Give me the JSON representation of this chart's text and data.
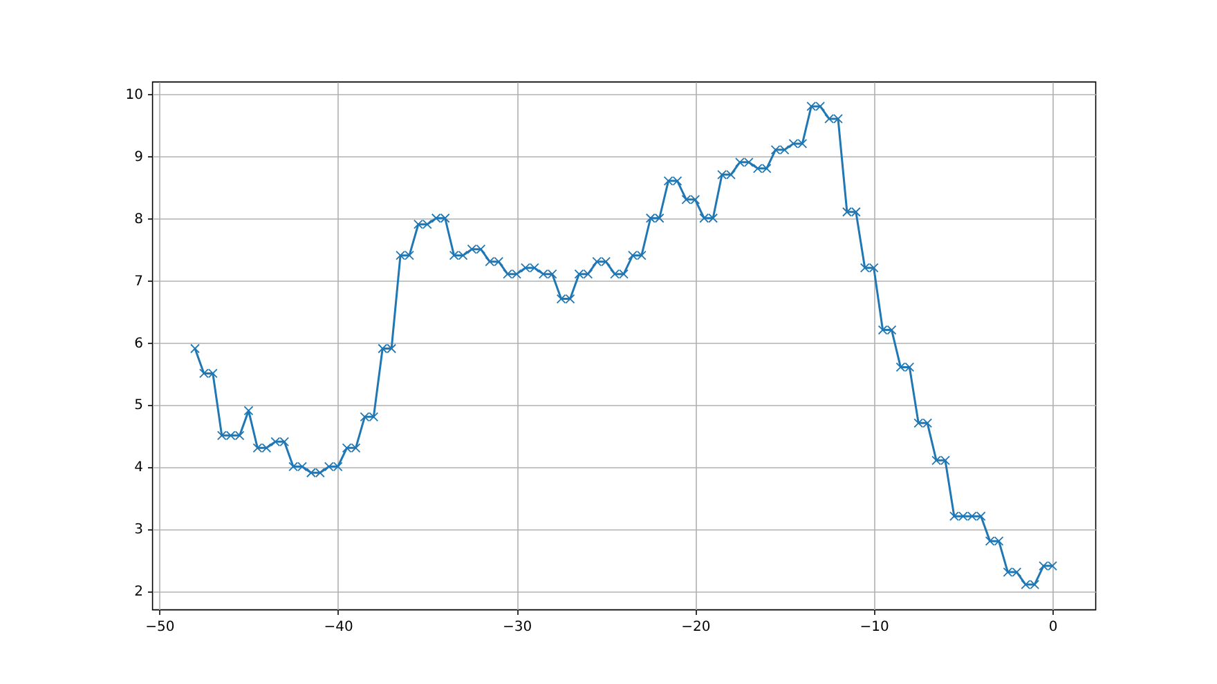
{
  "chart_data": {
    "type": "line",
    "marker": "cross",
    "line_style": "solid",
    "grid": true,
    "color": "#1f77b4",
    "x": [
      -48,
      -47.5,
      -47,
      -46.5,
      -46,
      -45.5,
      -45,
      -44.5,
      -44,
      -43.5,
      -43,
      -42.5,
      -42,
      -41.5,
      -41,
      -40.5,
      -40,
      -39.5,
      -39,
      -38.5,
      -38,
      -37.5,
      -37,
      -36.5,
      -36,
      -35.5,
      -35,
      -34.5,
      -34,
      -33.5,
      -33,
      -32.5,
      -32,
      -31.5,
      -31,
      -30.5,
      -30,
      -29.5,
      -29,
      -28.5,
      -28,
      -27.5,
      -27,
      -26.5,
      -26,
      -25.5,
      -25,
      -24.5,
      -24,
      -23.5,
      -23,
      -22.5,
      -22,
      -21.5,
      -21,
      -20.5,
      -20,
      -19.5,
      -19,
      -18.5,
      -18,
      -17.5,
      -17,
      -16.5,
      -16,
      -15.5,
      -15,
      -14.5,
      -14,
      -13.5,
      -13,
      -12.5,
      -12,
      -11.5,
      -11,
      -10.5,
      -10,
      -9.5,
      -9,
      -8.5,
      -8,
      -7.5,
      -7,
      -6.5,
      -6,
      -5.5,
      -5,
      -4.5,
      -4,
      -3.5,
      -3,
      -2.5,
      -2,
      -1.5,
      -1,
      -0.5,
      0
    ],
    "values": [
      5.9,
      5.5,
      5.5,
      4.5,
      4.5,
      4.5,
      4.9,
      4.3,
      4.3,
      4.4,
      4.4,
      4.0,
      4.0,
      3.9,
      3.9,
      4.0,
      4.0,
      4.3,
      4.3,
      4.8,
      4.8,
      5.9,
      5.9,
      7.4,
      7.4,
      7.9,
      7.9,
      8.0,
      8.0,
      7.4,
      7.4,
      7.5,
      7.5,
      7.3,
      7.3,
      7.1,
      7.1,
      7.2,
      7.2,
      7.1,
      7.1,
      6.7,
      6.7,
      7.1,
      7.1,
      7.3,
      7.3,
      7.1,
      7.1,
      7.4,
      7.4,
      8.0,
      8.0,
      8.6,
      8.6,
      8.3,
      8.3,
      8.0,
      8.0,
      8.7,
      8.7,
      8.9,
      8.9,
      8.8,
      8.8,
      9.1,
      9.1,
      9.2,
      9.2,
      9.8,
      9.8,
      9.6,
      9.6,
      8.1,
      8.1,
      7.2,
      7.2,
      6.2,
      6.2,
      5.6,
      5.6,
      4.7,
      4.7,
      4.1,
      4.1,
      3.2,
      3.2,
      3.2,
      3.2,
      2.8,
      2.8,
      2.3,
      2.3,
      2.1,
      2.1,
      2.4,
      2.4
    ],
    "xlim": [
      -50.4,
      2.4
    ],
    "ylim": [
      1.7,
      10.2
    ],
    "xticks": [
      -50,
      -40,
      -30,
      -20,
      -10,
      0
    ],
    "yticks": [
      2,
      3,
      4,
      5,
      6,
      7,
      8,
      9,
      10
    ]
  }
}
